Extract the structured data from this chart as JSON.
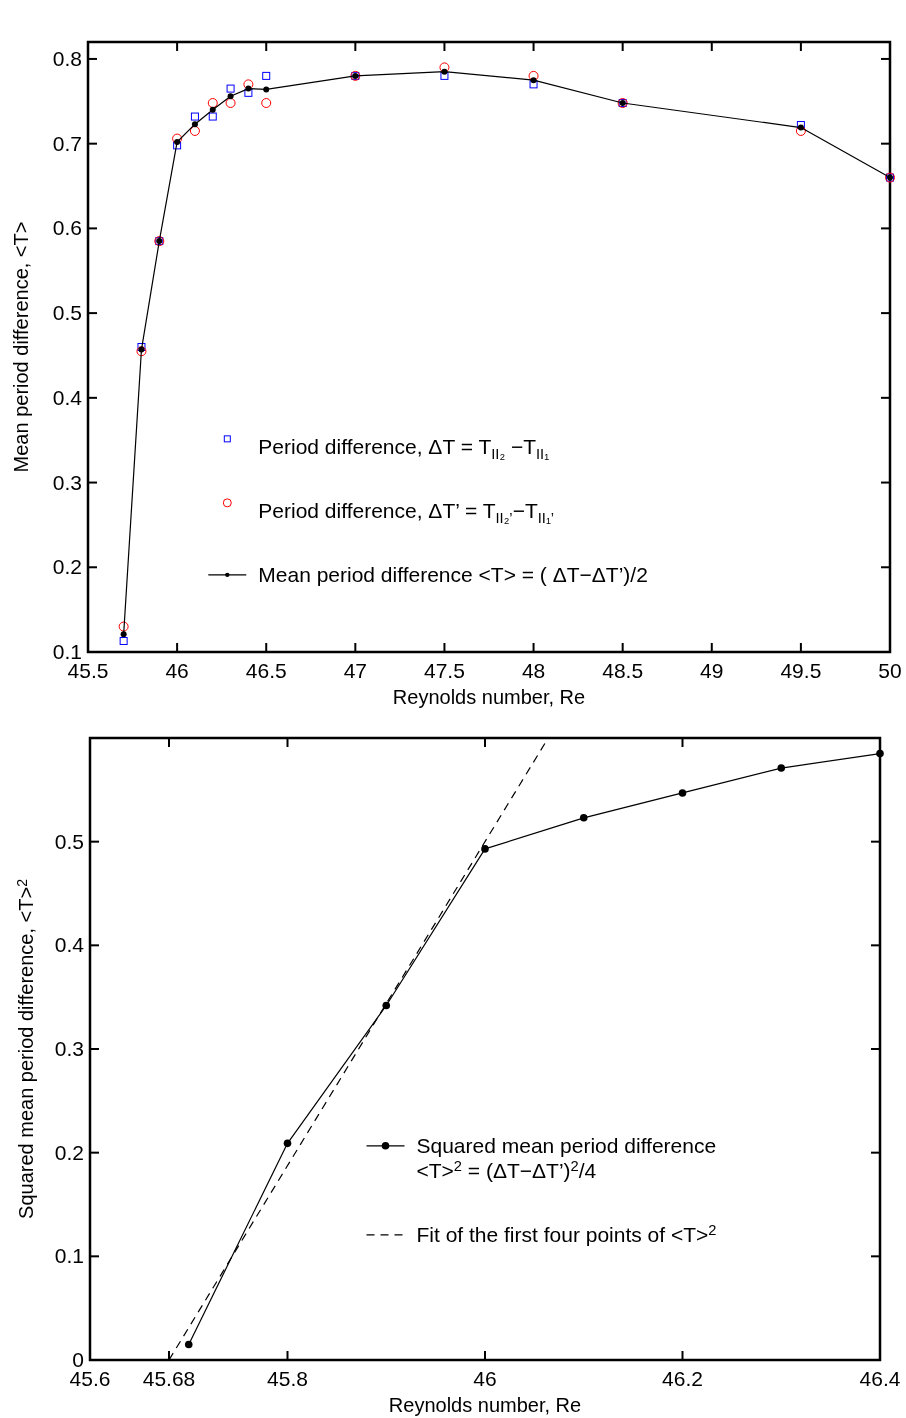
{
  "chart_data": [
    {
      "type": "line",
      "xlabel": "Reynolds number, Re",
      "ylabel": "Mean period difference, <T>",
      "xlim": [
        45.5,
        50
      ],
      "ylim": [
        0.1,
        0.82
      ],
      "xticks": [
        45.5,
        46,
        46.5,
        47,
        47.5,
        48,
        48.5,
        49,
        49.5,
        50
      ],
      "yticks": [
        0.1,
        0.2,
        0.3,
        0.4,
        0.5,
        0.6,
        0.7,
        0.8
      ],
      "grid": false,
      "legend": "bottom",
      "x": [
        45.7,
        45.8,
        45.9,
        46,
        46.1,
        46.2,
        46.3,
        46.4,
        46.5,
        47,
        47.5,
        48,
        48.5,
        49.5,
        50
      ],
      "series": [
        {
          "name": "Period difference,   ΔT = T$_{II₂}$ −T$_{II₁}$",
          "type": "scatter",
          "marker": "square",
          "color": "#0000ff",
          "values": [
            0.113,
            0.46,
            0.585,
            0.698,
            0.732,
            0.732,
            0.765,
            0.76,
            0.78,
            0.78,
            0.78,
            0.77,
            0.748,
            0.722,
            0.66
          ]
        },
        {
          "name": "Period difference,   ΔT’ = T$_{II₂’}$−T$_{II₁’}$",
          "type": "scatter",
          "marker": "circle",
          "color": "#ff0000",
          "values": [
            0.13,
            0.455,
            0.585,
            0.706,
            0.715,
            0.748,
            0.748,
            0.77,
            0.748,
            0.78,
            0.79,
            0.78,
            0.748,
            0.715,
            0.66
          ]
        },
        {
          "name": "Mean period difference <T> = (  ΔT−ΔT’)/2",
          "marker": "circle",
          "line_style": "solid",
          "color": "#000000",
          "values": [
            0.121,
            0.457,
            0.585,
            0.702,
            0.723,
            0.74,
            0.756,
            0.765,
            0.764,
            0.78,
            0.785,
            0.775,
            0.748,
            0.719,
            0.66
          ]
        }
      ]
    },
    {
      "type": "line",
      "xlabel": "Reynolds number, Re",
      "ylabel": "Squared mean period difference, <T>$^{2}$",
      "xlim": [
        45.6,
        46.4
      ],
      "ylim": [
        0,
        0.6
      ],
      "xticks": [
        45.6,
        45.68,
        45.8,
        46,
        46.2,
        46.4
      ],
      "yticks": [
        0,
        0.1,
        0.2,
        0.3,
        0.4,
        0.5
      ],
      "grid": false,
      "legend": "bottom right",
      "series": [
        {
          "name": "Squared mean period difference\n<T>$^{2}$ = (ΔT−ΔT’)$^{2}$/4",
          "marker": "circle",
          "line_style": "solid",
          "color": "#000000",
          "x": [
            45.7,
            45.8,
            45.9,
            46,
            46.1,
            46.2,
            46.3,
            46.4
          ],
          "values": [
            0.015,
            0.209,
            0.342,
            0.493,
            0.523,
            0.547,
            0.571,
            0.585
          ]
        },
        {
          "name": "Fit of the first four points of <T>$^{2}$",
          "marker": "none",
          "line_style": "dashed",
          "color": "#000000",
          "x": [
            45.68,
            46.064
          ],
          "values": [
            0,
            0.6
          ]
        }
      ]
    }
  ]
}
